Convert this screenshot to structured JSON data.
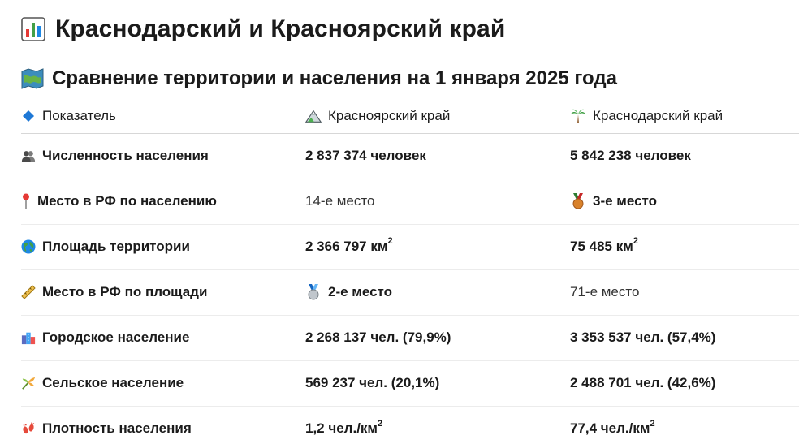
{
  "title": "Краснодарский и Красноярский край",
  "subtitle": "Сравнение территории и населения на 1 января 2025 года",
  "table": {
    "headers": {
      "indicator": "Показатель",
      "krasnoyarsk": "Красноярский край",
      "krasnodar": "Краснодарский край"
    },
    "rows": [
      {
        "label": "Численность населения",
        "krasnoyarsk": "2 837 374 человек",
        "krasnodar": "5 842 238 человек"
      },
      {
        "label": "Место в РФ по населению",
        "krasnoyarsk": "14-е место",
        "krasnodar": "3-е место"
      },
      {
        "label": "Площадь территории",
        "krasnoyarsk": "2 366 797 км",
        "krasnoyarsk_sup": "2",
        "krasnodar": "75 485 км",
        "krasnodar_sup": "2"
      },
      {
        "label": "Место в РФ по площади",
        "krasnoyarsk": "2-е место",
        "krasnodar": "71-е место"
      },
      {
        "label": "Городское население",
        "krasnoyarsk": "2 268 137 чел. (79,9%)",
        "krasnodar": "3 353 537 чел. (57,4%)"
      },
      {
        "label": "Сельское население",
        "krasnoyarsk": "569 237 чел. (20,1%)",
        "krasnodar": "2 488 701 чел. (42,6%)"
      },
      {
        "label": "Плотность населения",
        "krasnoyarsk": "1,2 чел./км",
        "krasnoyarsk_sup": "2",
        "krasnodar": "77,4 чел./км",
        "krasnodar_sup": "2"
      }
    ]
  },
  "icons": {
    "title": "bar-chart-icon",
    "subtitle": "map-icon",
    "indicator": "blue-diamond-icon",
    "krasnoyarsk": "mountain-icon",
    "krasnodar": "palm-tree-icon",
    "rows": [
      "people-icon",
      "pin-icon",
      "globe-icon",
      "ruler-icon",
      "city-icon",
      "sheaf-icon",
      "footprints-icon"
    ],
    "medals": [
      "bronze-medal-icon",
      "silver-medal-icon"
    ]
  },
  "colors": {
    "text": "#1b1b1b",
    "divider": "#ececec",
    "header_divider": "#d7d7d7"
  }
}
